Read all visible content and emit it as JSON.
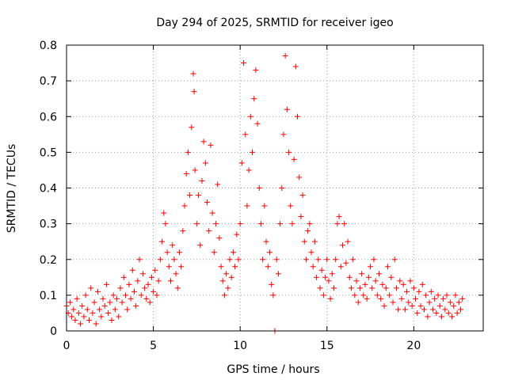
{
  "chart_data": {
    "type": "scatter",
    "title": "Day 294 of 2025, SRMTID for receiver igeo",
    "xlabel": "GPS time / hours",
    "ylabel": "SRMTID / TECUs",
    "xlim": [
      0,
      24
    ],
    "ylim": [
      0,
      0.8
    ],
    "xticks": [
      0,
      5,
      10,
      15,
      20
    ],
    "xtick_labels": [
      "0",
      "5",
      "10",
      "15",
      "20"
    ],
    "yticks": [
      0,
      0.1,
      0.2,
      0.3,
      0.4,
      0.5,
      0.6,
      0.7,
      0.8
    ],
    "ytick_labels": [
      "0",
      "0.1",
      "0.2",
      "0.3",
      "0.4",
      "0.5",
      "0.6",
      "0.7",
      "0.8"
    ],
    "grid": true,
    "marker": "+",
    "color": "#ff0000",
    "series": [
      {
        "name": "SRMTID",
        "points": [
          [
            0.0,
            0.07
          ],
          [
            0.1,
            0.05
          ],
          [
            0.2,
            0.08
          ],
          [
            0.3,
            0.04
          ],
          [
            0.4,
            0.06
          ],
          [
            0.5,
            0.03
          ],
          [
            0.6,
            0.09
          ],
          [
            0.7,
            0.05
          ],
          [
            0.8,
            0.02
          ],
          [
            0.9,
            0.07
          ],
          [
            1.0,
            0.04
          ],
          [
            1.1,
            0.1
          ],
          [
            1.2,
            0.06
          ],
          [
            1.3,
            0.03
          ],
          [
            1.4,
            0.12
          ],
          [
            1.5,
            0.05
          ],
          [
            1.6,
            0.08
          ],
          [
            1.7,
            0.02
          ],
          [
            1.8,
            0.11
          ],
          [
            1.9,
            0.06
          ],
          [
            2.0,
            0.04
          ],
          [
            2.1,
            0.09
          ],
          [
            2.2,
            0.07
          ],
          [
            2.3,
            0.13
          ],
          [
            2.4,
            0.05
          ],
          [
            2.5,
            0.08
          ],
          [
            2.6,
            0.03
          ],
          [
            2.7,
            0.1
          ],
          [
            2.8,
            0.06
          ],
          [
            2.9,
            0.09
          ],
          [
            3.0,
            0.04
          ],
          [
            3.1,
            0.12
          ],
          [
            3.2,
            0.08
          ],
          [
            3.3,
            0.15
          ],
          [
            3.4,
            0.1
          ],
          [
            3.5,
            0.06
          ],
          [
            3.6,
            0.13
          ],
          [
            3.7,
            0.09
          ],
          [
            3.8,
            0.17
          ],
          [
            3.9,
            0.11
          ],
          [
            4.0,
            0.07
          ],
          [
            4.1,
            0.14
          ],
          [
            4.2,
            0.2
          ],
          [
            4.3,
            0.1
          ],
          [
            4.4,
            0.16
          ],
          [
            4.5,
            0.12
          ],
          [
            4.6,
            0.09
          ],
          [
            4.7,
            0.13
          ],
          [
            4.8,
            0.08
          ],
          [
            4.9,
            0.15
          ],
          [
            5.0,
            0.11
          ],
          [
            5.1,
            0.17
          ],
          [
            5.2,
            0.1
          ],
          [
            5.3,
            0.14
          ],
          [
            5.4,
            0.2
          ],
          [
            5.5,
            0.25
          ],
          [
            5.6,
            0.33
          ],
          [
            5.7,
            0.3
          ],
          [
            5.8,
            0.22
          ],
          [
            5.9,
            0.18
          ],
          [
            6.0,
            0.14
          ],
          [
            6.1,
            0.24
          ],
          [
            6.2,
            0.2
          ],
          [
            6.3,
            0.16
          ],
          [
            6.4,
            0.12
          ],
          [
            6.5,
            0.22
          ],
          [
            6.6,
            0.18
          ],
          [
            6.7,
            0.28
          ],
          [
            6.8,
            0.35
          ],
          [
            6.9,
            0.44
          ],
          [
            7.0,
            0.5
          ],
          [
            7.1,
            0.38
          ],
          [
            7.2,
            0.57
          ],
          [
            7.3,
            0.72
          ],
          [
            7.35,
            0.67
          ],
          [
            7.4,
            0.45
          ],
          [
            7.5,
            0.3
          ],
          [
            7.6,
            0.38
          ],
          [
            7.7,
            0.24
          ],
          [
            7.8,
            0.42
          ],
          [
            7.9,
            0.53
          ],
          [
            8.0,
            0.47
          ],
          [
            8.1,
            0.36
          ],
          [
            8.2,
            0.28
          ],
          [
            8.3,
            0.52
          ],
          [
            8.4,
            0.33
          ],
          [
            8.5,
            0.22
          ],
          [
            8.6,
            0.3
          ],
          [
            8.7,
            0.41
          ],
          [
            8.8,
            0.26
          ],
          [
            8.9,
            0.18
          ],
          [
            9.0,
            0.14
          ],
          [
            9.1,
            0.1
          ],
          [
            9.2,
            0.16
          ],
          [
            9.3,
            0.12
          ],
          [
            9.4,
            0.2
          ],
          [
            9.5,
            0.15
          ],
          [
            9.6,
            0.22
          ],
          [
            9.7,
            0.18
          ],
          [
            9.8,
            0.27
          ],
          [
            9.9,
            0.2
          ],
          [
            10.0,
            0.3
          ],
          [
            10.1,
            0.47
          ],
          [
            10.2,
            0.75
          ],
          [
            10.3,
            0.55
          ],
          [
            10.4,
            0.35
          ],
          [
            10.5,
            0.45
          ],
          [
            10.6,
            0.6
          ],
          [
            10.7,
            0.5
          ],
          [
            10.8,
            0.65
          ],
          [
            10.9,
            0.73
          ],
          [
            11.0,
            0.58
          ],
          [
            11.1,
            0.4
          ],
          [
            11.2,
            0.3
          ],
          [
            11.3,
            0.2
          ],
          [
            11.4,
            0.35
          ],
          [
            11.5,
            0.25
          ],
          [
            11.6,
            0.18
          ],
          [
            11.7,
            0.22
          ],
          [
            11.8,
            0.13
          ],
          [
            11.9,
            0.1
          ],
          [
            12.0,
            0.0
          ],
          [
            12.1,
            0.2
          ],
          [
            12.2,
            0.16
          ],
          [
            12.3,
            0.3
          ],
          [
            12.4,
            0.4
          ],
          [
            12.5,
            0.55
          ],
          [
            12.6,
            0.77
          ],
          [
            12.7,
            0.62
          ],
          [
            12.8,
            0.5
          ],
          [
            12.9,
            0.35
          ],
          [
            13.0,
            0.3
          ],
          [
            13.1,
            0.48
          ],
          [
            13.2,
            0.74
          ],
          [
            13.3,
            0.6
          ],
          [
            13.4,
            0.43
          ],
          [
            13.5,
            0.32
          ],
          [
            13.6,
            0.38
          ],
          [
            13.7,
            0.25
          ],
          [
            13.8,
            0.2
          ],
          [
            13.9,
            0.28
          ],
          [
            14.0,
            0.3
          ],
          [
            14.1,
            0.22
          ],
          [
            14.2,
            0.18
          ],
          [
            14.3,
            0.25
          ],
          [
            14.4,
            0.15
          ],
          [
            14.5,
            0.2
          ],
          [
            14.6,
            0.12
          ],
          [
            14.7,
            0.17
          ],
          [
            14.8,
            0.1
          ],
          [
            14.9,
            0.15
          ],
          [
            15.0,
            0.2
          ],
          [
            15.1,
            0.14
          ],
          [
            15.2,
            0.09
          ],
          [
            15.3,
            0.16
          ],
          [
            15.4,
            0.12
          ],
          [
            15.5,
            0.2
          ],
          [
            15.6,
            0.3
          ],
          [
            15.7,
            0.32
          ],
          [
            15.8,
            0.18
          ],
          [
            15.9,
            0.24
          ],
          [
            16.0,
            0.3
          ],
          [
            16.1,
            0.19
          ],
          [
            16.2,
            0.25
          ],
          [
            16.3,
            0.15
          ],
          [
            16.4,
            0.12
          ],
          [
            16.5,
            0.2
          ],
          [
            16.6,
            0.1
          ],
          [
            16.7,
            0.14
          ],
          [
            16.8,
            0.08
          ],
          [
            16.9,
            0.12
          ],
          [
            17.0,
            0.16
          ],
          [
            17.1,
            0.1
          ],
          [
            17.2,
            0.13
          ],
          [
            17.3,
            0.09
          ],
          [
            17.4,
            0.15
          ],
          [
            17.5,
            0.18
          ],
          [
            17.6,
            0.12
          ],
          [
            17.7,
            0.2
          ],
          [
            17.8,
            0.14
          ],
          [
            17.9,
            0.1
          ],
          [
            18.0,
            0.16
          ],
          [
            18.1,
            0.09
          ],
          [
            18.2,
            0.13
          ],
          [
            18.3,
            0.07
          ],
          [
            18.4,
            0.12
          ],
          [
            18.5,
            0.18
          ],
          [
            18.6,
            0.1
          ],
          [
            18.7,
            0.15
          ],
          [
            18.8,
            0.08
          ],
          [
            18.9,
            0.2
          ],
          [
            19.0,
            0.12
          ],
          [
            19.1,
            0.06
          ],
          [
            19.2,
            0.14
          ],
          [
            19.3,
            0.09
          ],
          [
            19.4,
            0.13
          ],
          [
            19.5,
            0.06
          ],
          [
            19.6,
            0.11
          ],
          [
            19.7,
            0.08
          ],
          [
            19.8,
            0.14
          ],
          [
            19.9,
            0.07
          ],
          [
            20.0,
            0.12
          ],
          [
            20.1,
            0.09
          ],
          [
            20.2,
            0.05
          ],
          [
            20.3,
            0.11
          ],
          [
            20.4,
            0.07
          ],
          [
            20.5,
            0.13
          ],
          [
            20.6,
            0.06
          ],
          [
            20.7,
            0.1
          ],
          [
            20.8,
            0.04
          ],
          [
            20.9,
            0.08
          ],
          [
            21.0,
            0.11
          ],
          [
            21.1,
            0.06
          ],
          [
            21.2,
            0.09
          ],
          [
            21.3,
            0.05
          ],
          [
            21.4,
            0.1
          ],
          [
            21.5,
            0.07
          ],
          [
            21.6,
            0.04
          ],
          [
            21.7,
            0.09
          ],
          [
            21.8,
            0.06
          ],
          [
            21.9,
            0.1
          ],
          [
            22.0,
            0.05
          ],
          [
            22.1,
            0.08
          ],
          [
            22.2,
            0.04
          ],
          [
            22.3,
            0.07
          ],
          [
            22.4,
            0.1
          ],
          [
            22.5,
            0.05
          ],
          [
            22.6,
            0.08
          ],
          [
            22.7,
            0.06
          ],
          [
            22.8,
            0.09
          ]
        ]
      }
    ]
  }
}
